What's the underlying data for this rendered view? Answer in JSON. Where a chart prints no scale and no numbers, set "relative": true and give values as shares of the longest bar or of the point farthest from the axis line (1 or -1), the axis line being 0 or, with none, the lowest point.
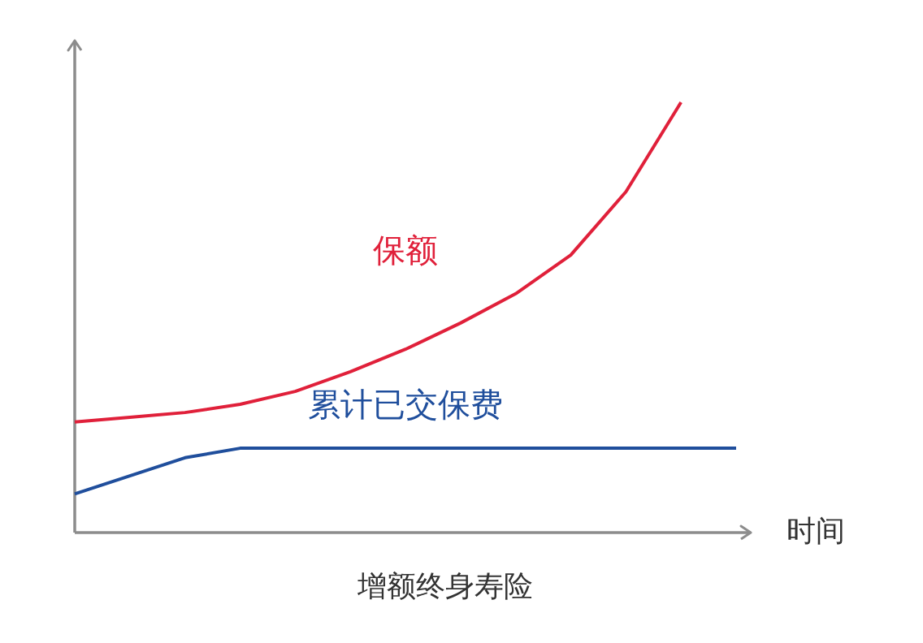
{
  "chart_data": {
    "type": "line",
    "title": "增额终身寿险",
    "xlabel": "时间",
    "relative": true,
    "grid": false,
    "line_style": "solid",
    "categories": [
      null,
      null,
      null,
      null,
      null,
      null,
      null,
      null,
      null,
      null,
      null,
      null,
      null
    ],
    "series": [
      {
        "name": "保额",
        "color": "#e0203a",
        "values": [
          0.257,
          0.268,
          0.279,
          0.298,
          0.328,
          0.374,
          0.426,
          0.487,
          0.555,
          0.645,
          0.792,
          1.0,
          null
        ]
      },
      {
        "name": "累计已交保费",
        "color": "#1f4e9c",
        "values": [
          0.09,
          0.132,
          0.174,
          0.196,
          0.196,
          0.196,
          0.196,
          0.196,
          0.196,
          0.196,
          0.196,
          0.196,
          0.196
        ]
      }
    ]
  }
}
